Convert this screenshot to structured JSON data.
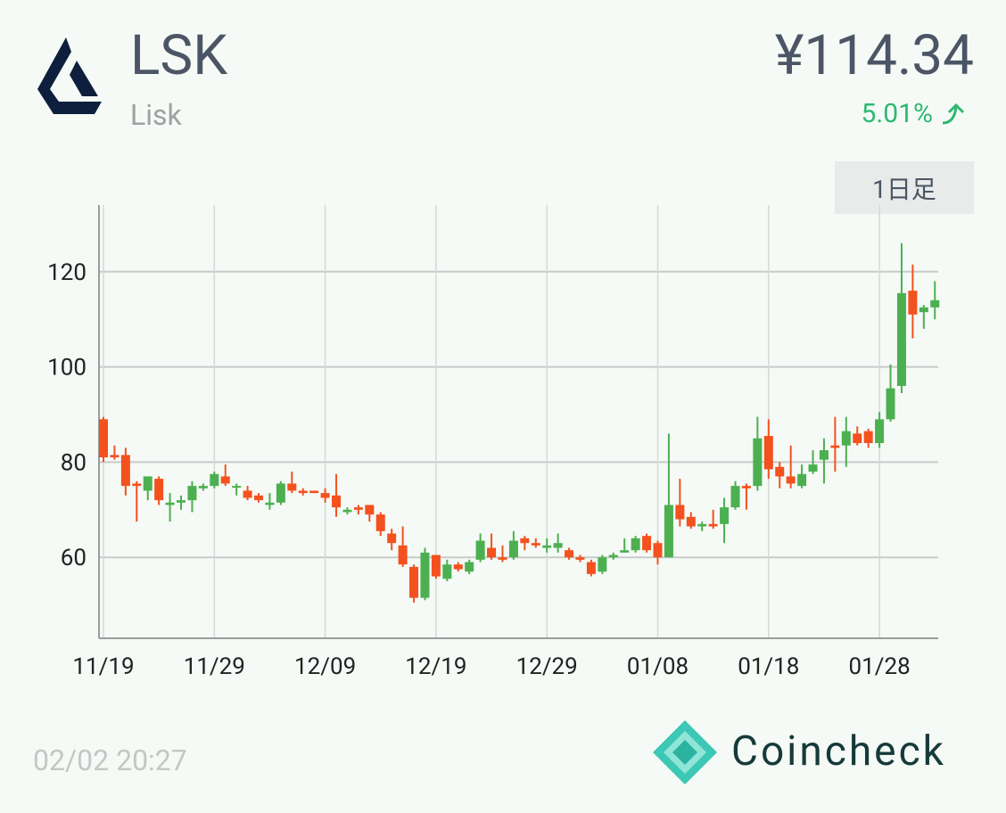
{
  "header": {
    "symbol": "LSK",
    "name": "Lisk",
    "price": "¥114.34",
    "change": "5.01%",
    "interval": "1日足"
  },
  "footer": {
    "timestamp": "02/02 20:27",
    "brand": "Coincheck"
  },
  "chart_data": {
    "type": "candlestick",
    "categories": [
      "11/19",
      null,
      null,
      null,
      null,
      null,
      null,
      null,
      null,
      null,
      "11/29",
      null,
      null,
      null,
      null,
      null,
      null,
      null,
      null,
      null,
      "12/09",
      null,
      null,
      null,
      null,
      null,
      null,
      null,
      null,
      null,
      "12/19",
      null,
      null,
      null,
      null,
      null,
      null,
      null,
      null,
      null,
      "12/29",
      null,
      null,
      null,
      null,
      null,
      null,
      null,
      null,
      null,
      "01/08",
      null,
      null,
      null,
      null,
      null,
      null,
      null,
      null,
      null,
      "01/18",
      null,
      null,
      null,
      null,
      null,
      null,
      null,
      null,
      null,
      "01/28",
      null,
      null,
      null,
      null,
      null
    ],
    "open": [
      89,
      81.5,
      81.5,
      75.5,
      74,
      76.5,
      71,
      71.5,
      72,
      74.5,
      75,
      77,
      75,
      74,
      73,
      71,
      71.5,
      75.5,
      74,
      74,
      73.5,
      73,
      69.5,
      70.5,
      71,
      69,
      65,
      62.5,
      58,
      51.5,
      60.5,
      55.5,
      58.5,
      57,
      59.5,
      62,
      60,
      60,
      64,
      63,
      62,
      62,
      61.5,
      60,
      59,
      57,
      60,
      61,
      61.5,
      64.5,
      63,
      60,
      71,
      68.5,
      66.5,
      67,
      67,
      70.5,
      75,
      75,
      85.5,
      79,
      77,
      75,
      78,
      80.5,
      83.5,
      83.5,
      86,
      86.5,
      84,
      89,
      96,
      116,
      111.5,
      112.5
    ],
    "high": [
      89.5,
      83.5,
      83,
      76,
      77,
      77,
      73.5,
      73,
      76,
      75.5,
      78,
      79.5,
      75.5,
      75,
      73.5,
      73.5,
      76,
      78,
      74.5,
      74,
      74.5,
      77.5,
      70.5,
      71,
      71,
      69.5,
      66,
      66.5,
      58.5,
      62,
      60.5,
      59.5,
      59,
      59.5,
      65,
      65,
      62.5,
      65.5,
      64.5,
      64,
      64,
      65,
      62,
      60.5,
      59.5,
      60.5,
      61,
      64,
      64.5,
      65,
      63.5,
      86,
      76.5,
      69.5,
      67.5,
      70,
      72.5,
      76,
      75.5,
      89.5,
      89,
      80,
      83.5,
      79.5,
      82.5,
      85,
      89.5,
      89.5,
      87.5,
      87,
      90.5,
      100.5,
      126,
      121.5,
      113,
      118
    ],
    "low": [
      80,
      80.5,
      73,
      67.5,
      72,
      71,
      67.5,
      70,
      69.5,
      74,
      74.5,
      75,
      73,
      72,
      71.5,
      70,
      71,
      73.5,
      73,
      73.5,
      71.5,
      68.5,
      69,
      69,
      67.5,
      64.5,
      61.5,
      58,
      50.5,
      51,
      55.5,
      55,
      57,
      56.5,
      59,
      59.5,
      59,
      59.5,
      61.5,
      62,
      61,
      61,
      59.5,
      59,
      56,
      56.5,
      59.5,
      61,
      61,
      61,
      58.5,
      60,
      66.5,
      66,
      65.5,
      66,
      63,
      70,
      70,
      74,
      76.5,
      74.5,
      74.5,
      74.5,
      77.5,
      75.5,
      78,
      79,
      83.5,
      83,
      83,
      88.5,
      94.5,
      106,
      108,
      110
    ],
    "close": [
      81,
      81,
      75,
      75,
      77,
      72,
      71.5,
      72,
      75,
      75,
      77.5,
      75.5,
      75,
      72.5,
      72,
      71.5,
      75.5,
      74,
      73.5,
      73.5,
      72.5,
      70.5,
      70,
      70,
      69,
      65.5,
      63,
      58.5,
      51.5,
      61,
      56,
      58.5,
      57.5,
      59,
      63.5,
      60,
      59.5,
      63.5,
      63,
      62.5,
      62.5,
      63,
      60,
      59.5,
      56.5,
      60,
      60.5,
      61.5,
      64,
      61.5,
      60,
      71,
      68,
      66.5,
      67,
      66.5,
      70.5,
      75,
      74.5,
      85,
      78.5,
      77,
      75.5,
      77.5,
      79.5,
      82.5,
      83,
      86.5,
      84,
      84,
      89,
      95.5,
      115.5,
      111,
      112.5,
      114
    ],
    "up_color": "#4caf50",
    "down_color": "#f4511e",
    "ylim": [
      43,
      134
    ],
    "yticks": [
      60,
      80,
      100,
      120
    ],
    "grid": true
  }
}
